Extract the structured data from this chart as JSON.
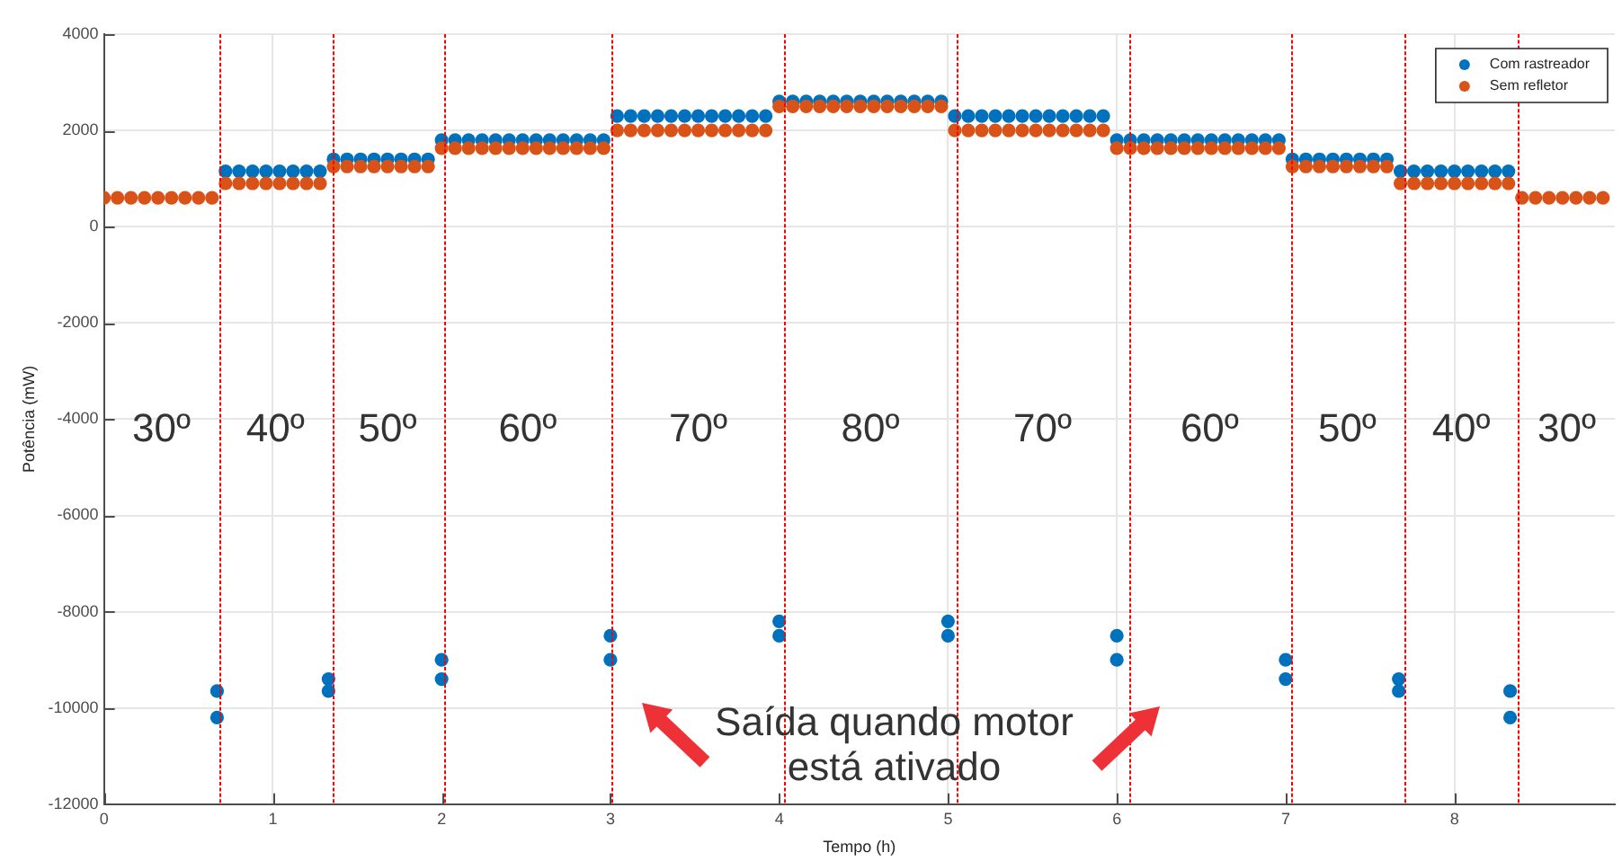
{
  "chart_data": {
    "type": "scatter",
    "xlabel": "Tempo (h)",
    "ylabel": "Potência (mW)",
    "xlim": [
      0,
      8.95
    ],
    "xticks": [
      0,
      1,
      2,
      3,
      4,
      5,
      6,
      7,
      8
    ],
    "ylim": [
      -12000,
      4000
    ],
    "yticks": [
      -12000,
      -10000,
      -8000,
      -6000,
      -4000,
      -2000,
      0,
      2000,
      4000
    ],
    "grid": true,
    "legend": "top right",
    "marker": "circle",
    "x": [
      0,
      0.08,
      0.16,
      0.24,
      0.32,
      0.4,
      0.48,
      0.56,
      0.64,
      0.72,
      0.8,
      0.88,
      0.96,
      1.04,
      1.12,
      1.2,
      1.28,
      1.36,
      1.44,
      1.52,
      1.6,
      1.68,
      1.76,
      1.84,
      1.92,
      2,
      2.08,
      2.16,
      2.24,
      2.32,
      2.4,
      2.48,
      2.56,
      2.64,
      2.72,
      2.8,
      2.88,
      2.96,
      3.04,
      3.12,
      3.2,
      3.28,
      3.36,
      3.44,
      3.52,
      3.6,
      3.68,
      3.76,
      3.84,
      3.92,
      4,
      4.08,
      4.16,
      4.24,
      4.32,
      4.4,
      4.48,
      4.56,
      4.64,
      4.72,
      4.8,
      4.88,
      4.96,
      5.04,
      5.12,
      5.2,
      5.28,
      5.36,
      5.44,
      5.52,
      5.6,
      5.68,
      5.76,
      5.84,
      5.92,
      6,
      6.08,
      6.16,
      6.24,
      6.32,
      6.4,
      6.48,
      6.56,
      6.64,
      6.72,
      6.8,
      6.88,
      6.96,
      7.04,
      7.12,
      7.2,
      7.28,
      7.36,
      7.44,
      7.52,
      7.6,
      7.68,
      7.76,
      7.84,
      7.92,
      8,
      8.08,
      8.16,
      8.24,
      8.32,
      8.4,
      8.48,
      8.56,
      8.64,
      8.72,
      8.8,
      8.88
    ],
    "series": [
      {
        "name": "Com rastreador",
        "color": "#0072bd",
        "x": [
          0.72,
          0.8,
          0.88,
          0.96,
          1.04,
          1.12,
          1.2,
          1.28,
          1.36,
          1.44,
          1.52,
          1.6,
          1.68,
          1.76,
          1.84,
          1.92,
          2,
          2.08,
          2.16,
          2.24,
          2.32,
          2.4,
          2.48,
          2.56,
          2.64,
          2.72,
          2.8,
          2.88,
          2.96,
          3.04,
          3.12,
          3.2,
          3.28,
          3.36,
          3.44,
          3.52,
          3.6,
          3.68,
          3.76,
          3.84,
          3.92,
          4,
          4.08,
          4.16,
          4.24,
          4.32,
          4.4,
          4.48,
          4.56,
          4.64,
          4.72,
          4.8,
          4.88,
          4.96,
          5.04,
          5.12,
          5.2,
          5.28,
          5.36,
          5.44,
          5.52,
          5.6,
          5.68,
          5.76,
          5.84,
          5.92,
          6,
          6.08,
          6.16,
          6.24,
          6.32,
          6.4,
          6.48,
          6.56,
          6.64,
          6.72,
          6.8,
          6.88,
          6.96,
          7.04,
          7.12,
          7.2,
          7.28,
          7.36,
          7.44,
          7.52,
          7.6,
          7.68,
          7.76,
          7.84,
          7.92,
          8,
          8.08,
          8.16,
          8.24,
          8.32,
          0.67,
          0.67,
          1.33,
          1.33,
          2,
          2,
          3,
          3,
          4,
          4,
          5,
          5,
          6,
          6,
          7,
          7,
          7.67,
          7.67,
          8.33,
          8.33
        ],
        "values": [
          1150,
          1150,
          1150,
          1150,
          1150,
          1150,
          1150,
          1150,
          1400,
          1400,
          1400,
          1400,
          1400,
          1400,
          1400,
          1400,
          1800,
          1800,
          1800,
          1800,
          1800,
          1800,
          1800,
          1800,
          1800,
          1800,
          1800,
          1800,
          1800,
          2300,
          2300,
          2300,
          2300,
          2300,
          2300,
          2300,
          2300,
          2300,
          2300,
          2300,
          2300,
          2600,
          2600,
          2600,
          2600,
          2600,
          2600,
          2600,
          2600,
          2600,
          2600,
          2600,
          2600,
          2600,
          2300,
          2300,
          2300,
          2300,
          2300,
          2300,
          2300,
          2300,
          2300,
          2300,
          2300,
          2300,
          1800,
          1800,
          1800,
          1800,
          1800,
          1800,
          1800,
          1800,
          1800,
          1800,
          1800,
          1800,
          1800,
          1400,
          1400,
          1400,
          1400,
          1400,
          1400,
          1400,
          1400,
          1150,
          1150,
          1150,
          1150,
          1150,
          1150,
          1150,
          1150,
          1150,
          -9650,
          -10200,
          -9400,
          -9650,
          -9000,
          -9400,
          -8500,
          -9000,
          -8200,
          -8500,
          -8200,
          -8500,
          -8500,
          -9000,
          -9000,
          -9400,
          -9400,
          -9650,
          -9650,
          -10200
        ]
      },
      {
        "name": "Sem refletor",
        "color": "#d95319",
        "values": [
          600,
          600,
          600,
          600,
          600,
          600,
          600,
          600,
          600,
          900,
          900,
          900,
          900,
          900,
          900,
          900,
          900,
          1250,
          1250,
          1250,
          1250,
          1250,
          1250,
          1250,
          1250,
          1630,
          1630,
          1630,
          1630,
          1630,
          1630,
          1630,
          1630,
          1630,
          1630,
          1630,
          1630,
          1630,
          2000,
          2000,
          2000,
          2000,
          2000,
          2000,
          2000,
          2000,
          2000,
          2000,
          2000,
          2000,
          2500,
          2500,
          2500,
          2500,
          2500,
          2500,
          2500,
          2500,
          2500,
          2500,
          2500,
          2500,
          2500,
          2000,
          2000,
          2000,
          2000,
          2000,
          2000,
          2000,
          2000,
          2000,
          2000,
          2000,
          2000,
          1630,
          1630,
          1630,
          1630,
          1630,
          1630,
          1630,
          1630,
          1630,
          1630,
          1630,
          1630,
          1630,
          1250,
          1250,
          1250,
          1250,
          1250,
          1250,
          1250,
          1250,
          900,
          900,
          900,
          900,
          900,
          900,
          900,
          900,
          900,
          600,
          600,
          600,
          600,
          600,
          600,
          600
        ]
      }
    ],
    "ref_lines": [
      {
        "axis": "x",
        "value": 0.68,
        "color": "#ff0000",
        "line_style": "dotted"
      },
      {
        "axis": "x",
        "value": 1.35,
        "color": "#ff0000",
        "line_style": "dotted"
      },
      {
        "axis": "x",
        "value": 2.01,
        "color": "#ff0000",
        "line_style": "dotted"
      },
      {
        "axis": "x",
        "value": 3.01,
        "color": "#ff0000",
        "line_style": "dotted"
      },
      {
        "axis": "x",
        "value": 4.03,
        "color": "#ff0000",
        "line_style": "dotted"
      },
      {
        "axis": "x",
        "value": 5.05,
        "color": "#ff0000",
        "line_style": "dotted"
      },
      {
        "axis": "x",
        "value": 6.07,
        "color": "#ff0000",
        "line_style": "dotted"
      },
      {
        "axis": "x",
        "value": 7.03,
        "color": "#ff0000",
        "line_style": "dotted"
      },
      {
        "axis": "x",
        "value": 7.7,
        "color": "#ff0000",
        "line_style": "dotted"
      },
      {
        "axis": "x",
        "value": 8.38,
        "color": "#ff0000",
        "line_style": "dotted"
      }
    ],
    "annotations": [
      "30º",
      "40º",
      "50º",
      "60º",
      "70º",
      "80º",
      "70º",
      "60º",
      "50º",
      "40º",
      "30º",
      "Saída quando motor\nestá ativado"
    ]
  }
}
